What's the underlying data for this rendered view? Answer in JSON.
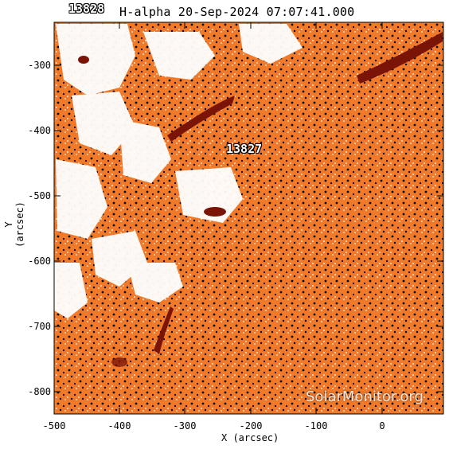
{
  "title": "H-alpha 20-Sep-2024 07:07:41.000",
  "regions": [
    {
      "label": "13828",
      "where": "top-left-edge"
    },
    {
      "label": "13827",
      "where": "center"
    }
  ],
  "axes": {
    "xlabel": "X (arcsec)",
    "ylabel": "Y (arcsec)",
    "xticks": [
      "-500",
      "-400",
      "-300",
      "-200",
      "-100",
      "0"
    ],
    "yticks": [
      "-300",
      "-400",
      "-500",
      "-600",
      "-700",
      "-800"
    ]
  },
  "watermark": "SolarMonitor.org",
  "colors": {
    "background": "#ffffff",
    "chromosphere": "#f07a2a",
    "filament": "#7a1406",
    "plage": "#ffffff"
  }
}
